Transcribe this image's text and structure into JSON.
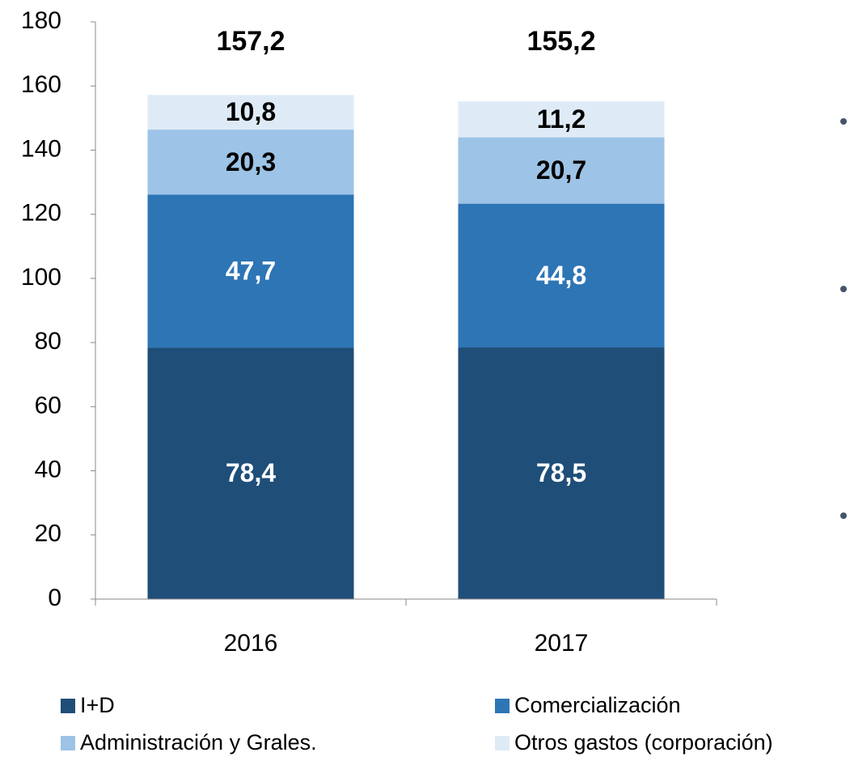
{
  "chart_data": {
    "type": "stacked_bar",
    "categories": [
      "2016",
      "2017"
    ],
    "series": [
      {
        "name": "I+D",
        "color": "#1f4e79",
        "label_color": "#ffffff",
        "values": [
          78.4,
          78.5
        ],
        "value_labels": [
          "78,4",
          "78,5"
        ]
      },
      {
        "name": "Comercialización",
        "color": "#2e75b6",
        "label_color": "#ffffff",
        "values": [
          47.7,
          44.8
        ],
        "value_labels": [
          "47,7",
          "44,8"
        ]
      },
      {
        "name": "Administración y Grales.",
        "color": "#9dc3e6",
        "label_color": "#000000",
        "values": [
          20.3,
          20.7
        ],
        "value_labels": [
          "20,3",
          "20,7"
        ]
      },
      {
        "name": "Otros gastos (corporación)",
        "color": "#deebf7",
        "label_color": "#000000",
        "values": [
          10.8,
          11.2
        ],
        "value_labels": [
          "10,8",
          "11,2"
        ]
      }
    ],
    "totals": [
      157.2,
      155.2
    ],
    "total_labels": [
      "157,2",
      "155,2"
    ],
    "ylim": [
      0,
      180
    ],
    "yticks": [
      0,
      20,
      40,
      60,
      80,
      100,
      120,
      140,
      160,
      180
    ],
    "grid": false,
    "legend": "bottom"
  }
}
